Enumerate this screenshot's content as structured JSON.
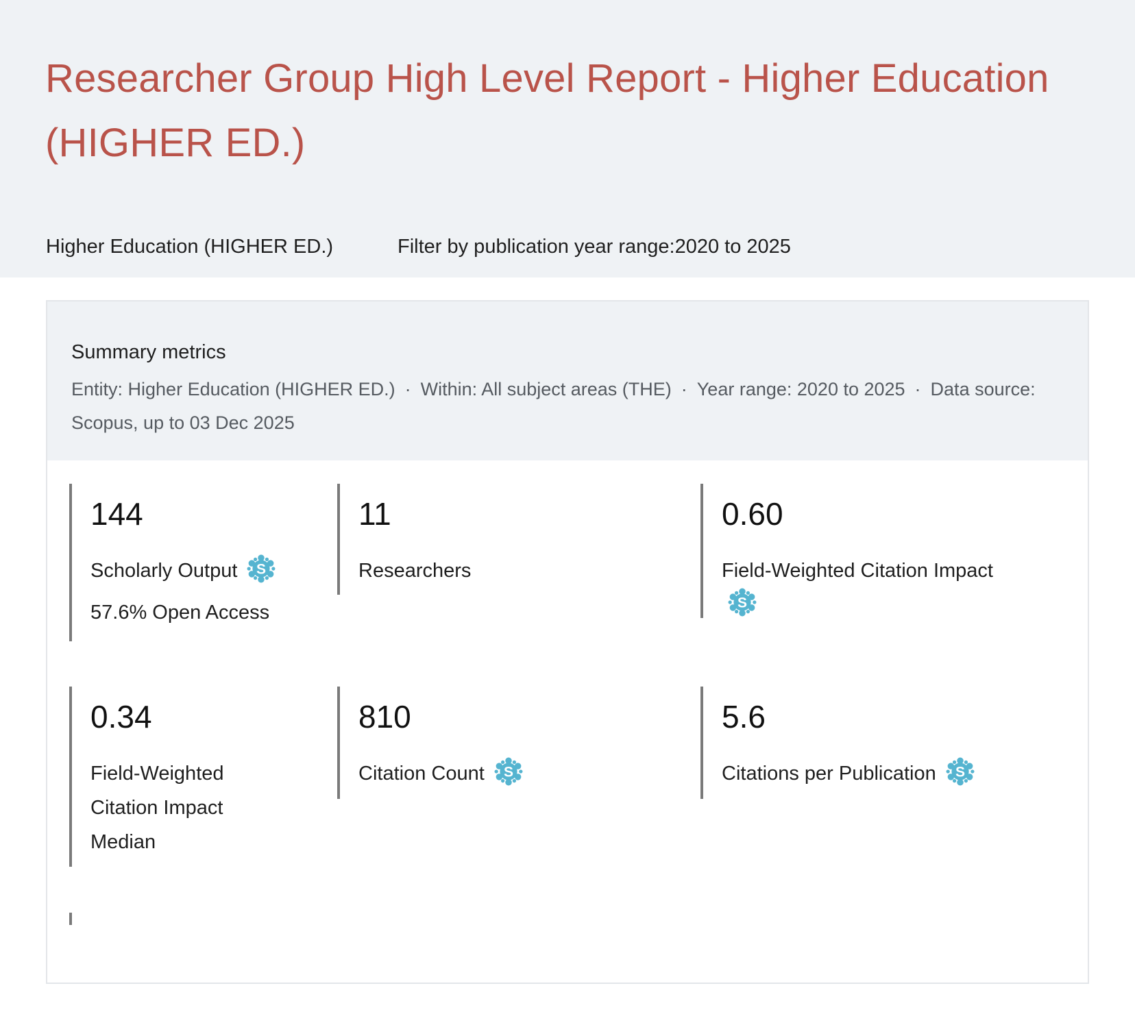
{
  "header": {
    "title": "Researcher Group High Level Report - Higher Education (HIGHER ED.)",
    "entity": "Higher Education (HIGHER ED.)",
    "filter": "Filter by publication year range:2020 to 2025"
  },
  "summary": {
    "title": "Summary metrics",
    "meta": {
      "entity": "Entity: Higher Education (HIGHER ED.)",
      "within": "Within: All subject areas (THE)",
      "year_range": "Year range: 2020 to 2025",
      "source": "Data source: Scopus, up to 03 Dec 2025",
      "separator": "·"
    }
  },
  "metrics": [
    {
      "value": "144",
      "label": "Scholarly Output",
      "sub": "57.6% Open Access",
      "icon": "snowball-metric-icon"
    },
    {
      "value": "11",
      "label": "Researchers"
    },
    {
      "value": "0.60",
      "label": "Field-Weighted Citation Impact",
      "icon": "snowball-metric-icon"
    },
    {
      "value": "0.34",
      "label_lines": [
        "Field-Weighted",
        "Citation Impact",
        "Median"
      ]
    },
    {
      "value": "810",
      "label": "Citation Count",
      "icon": "snowball-metric-icon"
    },
    {
      "value": "5.6",
      "label": "Citations per Publication",
      "icon": "snowball-metric-icon"
    }
  ],
  "colors": {
    "title": "#b9534a",
    "header_bg": "#eff2f5",
    "icon": "#55b4d0",
    "bar": "#7a7a7a"
  }
}
